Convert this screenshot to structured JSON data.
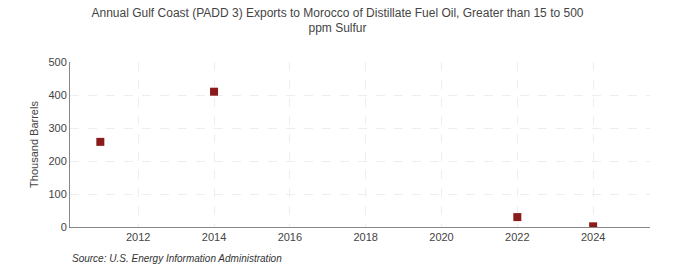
{
  "chart_data": {
    "type": "scatter",
    "title": "Annual Gulf Coast (PADD 3) Exports to Morocco of Distillate Fuel Oil, Greater than 15 to 500\nppm Sulfur",
    "ylabel": "Thousand Barrels",
    "annotations": [
      "Source: U.S. Energy Information Administration"
    ],
    "x": [
      2011,
      2014,
      2022,
      2024
    ],
    "values": [
      258,
      410,
      30,
      2
    ],
    "color": "#8b1a1a",
    "marker": "square",
    "xlim": [
      2010.2,
      2025.5
    ],
    "xticks": [
      2012,
      2014,
      2016,
      2018,
      2020,
      2022,
      2024
    ],
    "ylim": [
      0,
      500
    ],
    "yticks": [
      0,
      100,
      200,
      300,
      400,
      500
    ],
    "grid": true
  }
}
